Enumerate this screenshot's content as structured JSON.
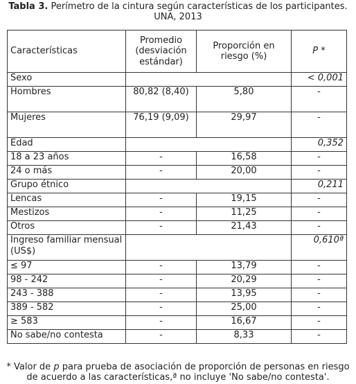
{
  "caption": {
    "label": "Tabla 3.",
    "text": " Perímetro de la cintura según características de los participantes.",
    "line2": "UNA, 2013"
  },
  "headers": {
    "characteristics": "Características",
    "average": "Promedio (desviación estándar)",
    "proportion": "Proporción en riesgo (%)",
    "p": "P *"
  },
  "rows": [
    {
      "label": "Sexo",
      "avg": "",
      "prop": "",
      "p": "< 0,001",
      "group": true
    },
    {
      "label": "Hombres",
      "avg": "80,82 (8,40)",
      "prop": "5,80",
      "p": "-"
    },
    {
      "label": "Mujeres",
      "avg": "76,19 (9,09)",
      "prop": "29,97",
      "p": "-"
    },
    {
      "label": "Edad",
      "avg": "",
      "prop": "",
      "p": "0,352",
      "group": true
    },
    {
      "label": "18 a 23 años",
      "avg": "-",
      "prop": "16,58",
      "p": "-"
    },
    {
      "label": "24 o más",
      "avg": "-",
      "prop": "20,00",
      "p": "-"
    },
    {
      "label": "Grupo étnico",
      "avg": "",
      "prop": "",
      "p": "0,211",
      "group": true
    },
    {
      "label": "Lencas",
      "avg": "-",
      "prop": "19,15",
      "p": "-"
    },
    {
      "label": "Mestizos",
      "avg": "-",
      "prop": "11,25",
      "p": "-"
    },
    {
      "label": "Otros",
      "avg": "-",
      "prop": "21,43",
      "p": "-"
    },
    {
      "label": "Ingreso familiar mensual (US$)",
      "avg": "",
      "prop": "",
      "p": "0,610ª",
      "group": true
    },
    {
      "label": "≤ 97",
      "avg": "-",
      "prop": "13,79",
      "p": "-"
    },
    {
      "label": "98 - 242",
      "avg": "-",
      "prop": "20,29",
      "p": "-"
    },
    {
      "label": "243 - 388",
      "avg": "-",
      "prop": "13,95",
      "p": "-"
    },
    {
      "label": "389 - 582",
      "avg": "-",
      "prop": "25,00",
      "p": "-"
    },
    {
      "label": "≥ 583",
      "avg": "-",
      "prop": "16,67",
      "p": "-"
    },
    {
      "label": "No sabe/no contesta",
      "avg": "-",
      "prop": "8,33",
      "p": "-"
    }
  ],
  "footnote": {
    "star": "* Valor de ",
    "p": "p",
    "rest1": " para prueba de asociación de proporción de personas en riesgo",
    "line2": "de acuerdo a las características,ª no incluye 'No sabe/no contesta'."
  }
}
